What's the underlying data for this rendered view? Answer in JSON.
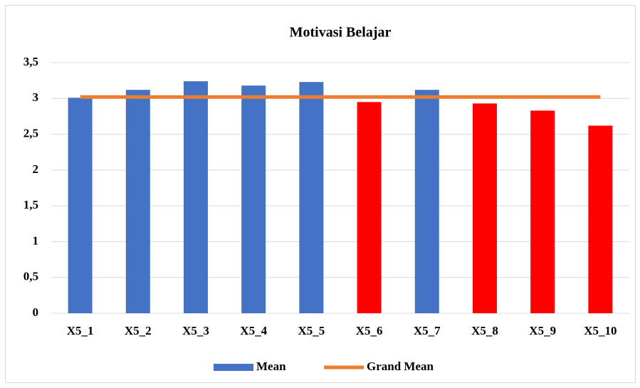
{
  "chart_data": {
    "type": "bar",
    "title": "Motivasi Belajar",
    "categories": [
      "X5_1",
      "X5_2",
      "X5_3",
      "X5_4",
      "X5_5",
      "X5_6",
      "X5_7",
      "X5_8",
      "X5_9",
      "X5_10"
    ],
    "series": [
      {
        "name": "Mean",
        "type": "bar",
        "color": "#4472c4",
        "colors": [
          "#4472c4",
          "#4472c4",
          "#4472c4",
          "#4472c4",
          "#4472c4",
          "#ff0000",
          "#4472c4",
          "#ff0000",
          "#ff0000",
          "#ff0000"
        ],
        "values": [
          3.01,
          3.12,
          3.24,
          3.18,
          3.23,
          2.95,
          3.12,
          2.93,
          2.83,
          2.62
        ]
      },
      {
        "name": "Grand Mean",
        "type": "line",
        "color": "#ed7d31",
        "values": [
          3.02,
          3.02,
          3.02,
          3.02,
          3.02,
          3.02,
          3.02,
          3.02,
          3.02,
          3.02
        ]
      }
    ],
    "ylim": [
      0,
      3.5
    ],
    "yticks": [
      0,
      {
        "value": 0.5,
        "label": "0,5"
      },
      1,
      {
        "value": 1.5,
        "label": "1,5"
      },
      2,
      {
        "value": 2.5,
        "label": "2,5"
      },
      3,
      {
        "value": 3.5,
        "label": "3,5"
      }
    ],
    "grid": true,
    "legend": "bottom"
  }
}
